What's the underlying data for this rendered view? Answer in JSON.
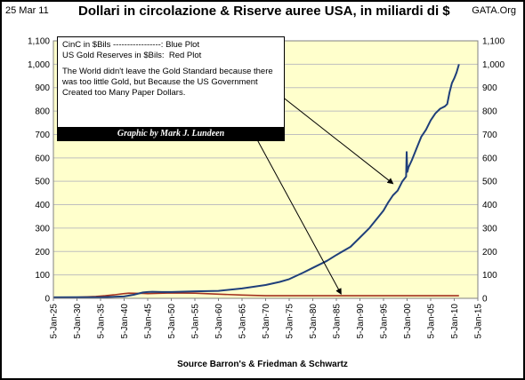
{
  "header": {
    "date": "25 Mar 11",
    "title": "Dollari in circolazione & Riserve auree USA, in miliardi di $",
    "source_tag": "GATA.Org"
  },
  "footer": {
    "source": "Source Barron's & Friedman & Schwartz"
  },
  "notes": {
    "line1": "CinC in $Bils -----------------: Blue Plot",
    "line2": "US Gold Reserves in $Bils:  Red Plot",
    "paragraph": "The World didn't leave the Gold Standard because there was too little Gold, but Because the US Government Created too Many Paper Dollars.",
    "credit": "Graphic by Mark J. Lundeen"
  },
  "colors": {
    "plot_background": "#ffffcc",
    "blue_series": "#1f3f7a",
    "red_series": "#a3321f",
    "gridline": "#bfbfbf",
    "arrow": "#000000"
  },
  "chart_data": {
    "type": "line",
    "title": "Dollari in circolazione & Riserve auree USA, in miliardi di $",
    "xlabel": "",
    "ylabel": "",
    "ylim": [
      0,
      1100
    ],
    "y_ticks": [
      0,
      100,
      200,
      300,
      400,
      500,
      600,
      700,
      800,
      900,
      1000,
      1100
    ],
    "y_tick_labels": [
      "0",
      "100",
      "200",
      "300",
      "400",
      "500",
      "600",
      "700",
      "800",
      "900",
      "1,000",
      "1,100"
    ],
    "secondary_y_axis": true,
    "x_ticks": [
      "5-Jan-25",
      "5-Jan-30",
      "5-Jan-35",
      "5-Jan-40",
      "5-Jan-45",
      "5-Jan-50",
      "5-Jan-55",
      "5-Jan-60",
      "5-Jan-65",
      "5-Jan-70",
      "5-Jan-75",
      "5-Jan-80",
      "5-Jan-85",
      "5-Jan-90",
      "5-Jan-95",
      "5-Jan-00",
      "5-Jan-05",
      "5-Jan-10",
      "5-Jan-15"
    ],
    "grid": "horizontal",
    "series": [
      {
        "name": "CinC in $Bils",
        "color": "#1f3f7a",
        "x": [
          1925,
          1930,
          1935,
          1940,
          1942,
          1944,
          1945,
          1946,
          1948,
          1950,
          1955,
          1960,
          1965,
          1970,
          1973,
          1975,
          1978,
          1980,
          1983,
          1985,
          1988,
          1990,
          1992,
          1994,
          1995,
          1996,
          1997,
          1998,
          1999,
          1999.8,
          1999.9,
          2000.05,
          2000.3,
          2001,
          2002,
          2003,
          2004,
          2005,
          2006,
          2007,
          2007.5,
          2008,
          2008.5,
          2009,
          2009.5,
          2010,
          2010.5,
          2011
        ],
        "y": [
          4,
          4.5,
          5,
          8,
          15,
          25,
          27,
          28,
          27,
          27,
          30,
          32,
          42,
          57,
          70,
          82,
          110,
          130,
          160,
          185,
          220,
          260,
          300,
          350,
          375,
          410,
          440,
          460,
          500,
          520,
          625,
          540,
          560,
          590,
          640,
          690,
          720,
          760,
          790,
          810,
          815,
          820,
          830,
          880,
          920,
          940,
          965,
          1000
        ]
      },
      {
        "name": "US Gold Reserves in $Bils",
        "color": "#a3321f",
        "x": [
          1925,
          1930,
          1934,
          1936,
          1938,
          1940,
          1941,
          1944,
          1945,
          1950,
          1955,
          1960,
          1965,
          1970,
          1975,
          1980,
          1985,
          1990,
          1995,
          2000,
          2005,
          2011
        ],
        "y": [
          4,
          4.5,
          8,
          11,
          15,
          20,
          22,
          21,
          20,
          23,
          22,
          18,
          14,
          11,
          11,
          11,
          11,
          11,
          11,
          11,
          11,
          11
        ]
      }
    ],
    "annotations": [
      {
        "text": "Blue Plot",
        "points_to": "CinC in $Bils"
      },
      {
        "text": "Red Plot",
        "points_to": "US Gold Reserves in $Bils"
      }
    ]
  }
}
